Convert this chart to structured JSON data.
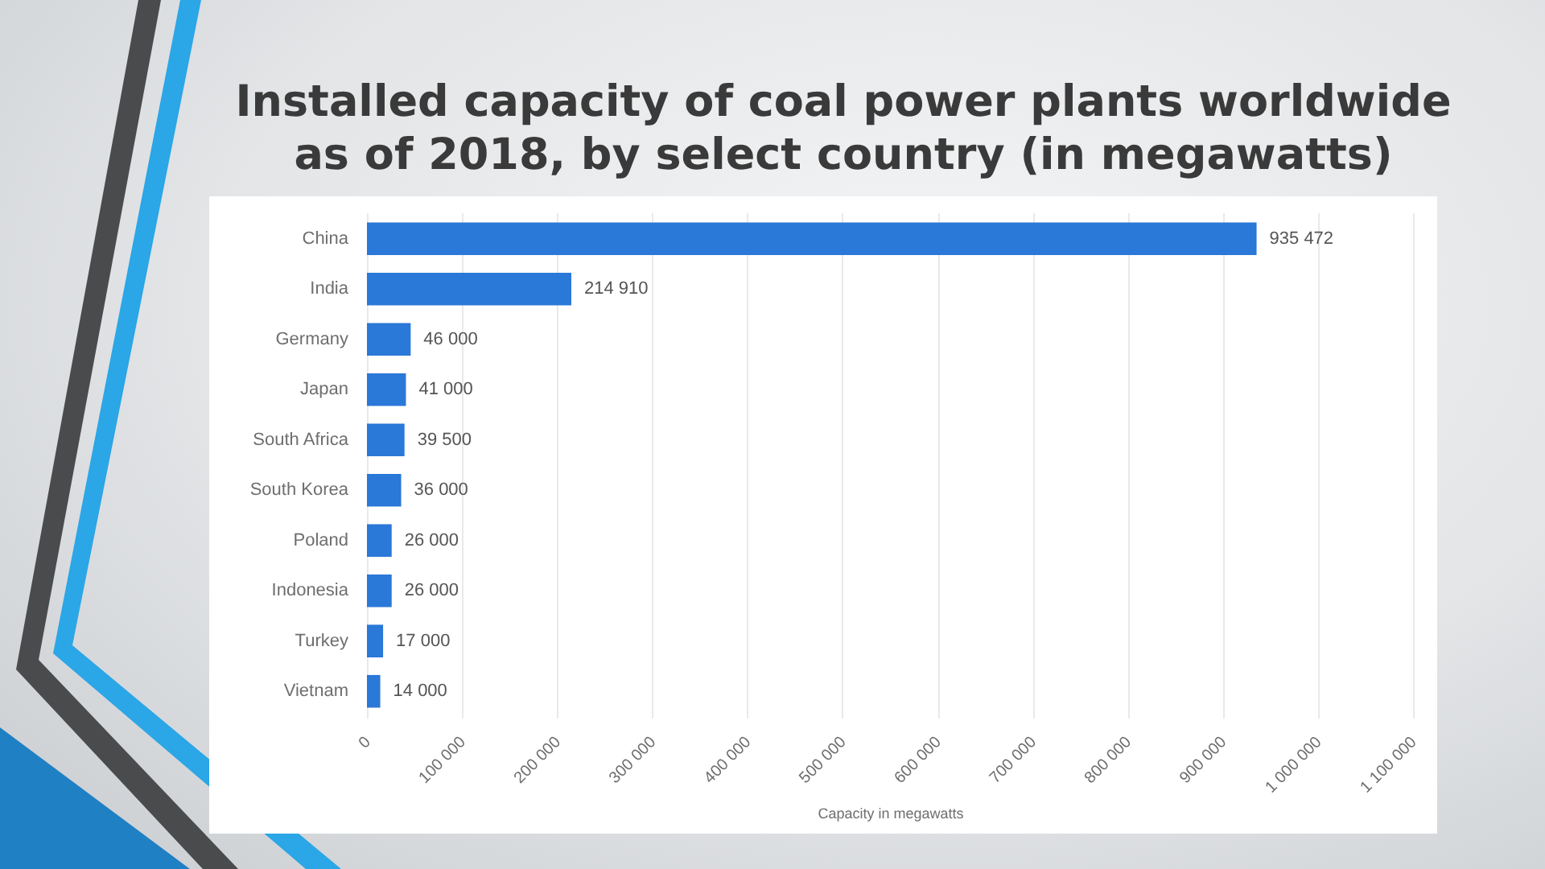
{
  "chart_data": {
    "type": "bar",
    "orientation": "horizontal",
    "title": "Installed capacity of coal power plants worldwide as of 2018, by select country (in megawatts)",
    "xlabel": "Capacity in megawatts",
    "categories": [
      "China",
      "India",
      "Germany",
      "Japan",
      "South Africa",
      "South Korea",
      "Poland",
      "Indonesia",
      "Turkey",
      "Vietnam"
    ],
    "values": [
      935472,
      214910,
      46000,
      41000,
      39500,
      36000,
      26000,
      26000,
      17000,
      14000
    ],
    "value_labels": [
      "935 472",
      "214 910",
      "46 000",
      "41 000",
      "39 500",
      "36 000",
      "26 000",
      "26 000",
      "17 000",
      "14 000"
    ],
    "color": "#2a78d8",
    "xlim": [
      0,
      1100000
    ],
    "xticks": [
      0,
      {
        "value": 100000,
        "label": "100 000"
      },
      {
        "value": 200000,
        "label": "200 000"
      },
      {
        "value": 300000,
        "label": "300 000"
      },
      {
        "value": 400000,
        "label": "400 000"
      },
      {
        "value": 500000,
        "label": "500 000"
      },
      {
        "value": 600000,
        "label": "600 000"
      },
      {
        "value": 700000,
        "label": "700 000"
      },
      {
        "value": 800000,
        "label": "800 000"
      },
      {
        "value": 900000,
        "label": "900 000"
      },
      {
        "value": 1000000,
        "label": "1 000 000"
      },
      {
        "value": 1100000,
        "label": "1 100 000"
      }
    ],
    "grid": "x"
  }
}
